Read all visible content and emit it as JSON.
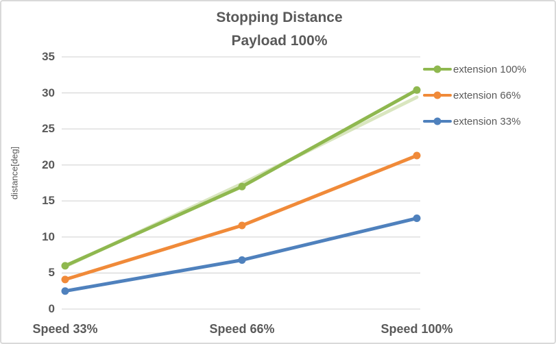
{
  "window": {
    "background": "#FFFFFF",
    "border_color": "#D9D9D9",
    "text_color": "#595959"
  },
  "chart_data": {
    "type": "line",
    "title": "Stopping Distance",
    "subtitle": "Payload 100%",
    "categories": [
      "Speed 33%",
      "Speed 66%",
      "Speed 100%"
    ],
    "series": [
      {
        "name": "extension 100%",
        "color": "#8FB84F",
        "values": [
          6.0,
          17.0,
          30.4
        ]
      },
      {
        "name": "extension 66%",
        "color": "#F08A39",
        "values": [
          4.1,
          11.6,
          21.3
        ]
      },
      {
        "name": "extension 33%",
        "color": "#4F81BD",
        "values": [
          2.5,
          6.8,
          12.6
        ]
      }
    ],
    "ghost_series": {
      "note": "faint pale-green duplicate line running along the extension 100% series, ending slightly below its last marker",
      "color": "#C9DCA4",
      "opacity": 0.7,
      "values": [
        5.9,
        17.4,
        29.4
      ]
    },
    "xlabel": "",
    "ylabel": "distance[deg]",
    "ylim": [
      0,
      35
    ],
    "ytick_step": 5,
    "grid": true,
    "grid_color": "#D9D9D9",
    "legend_position": "right-top",
    "marker": "circle",
    "line_width": 5
  }
}
